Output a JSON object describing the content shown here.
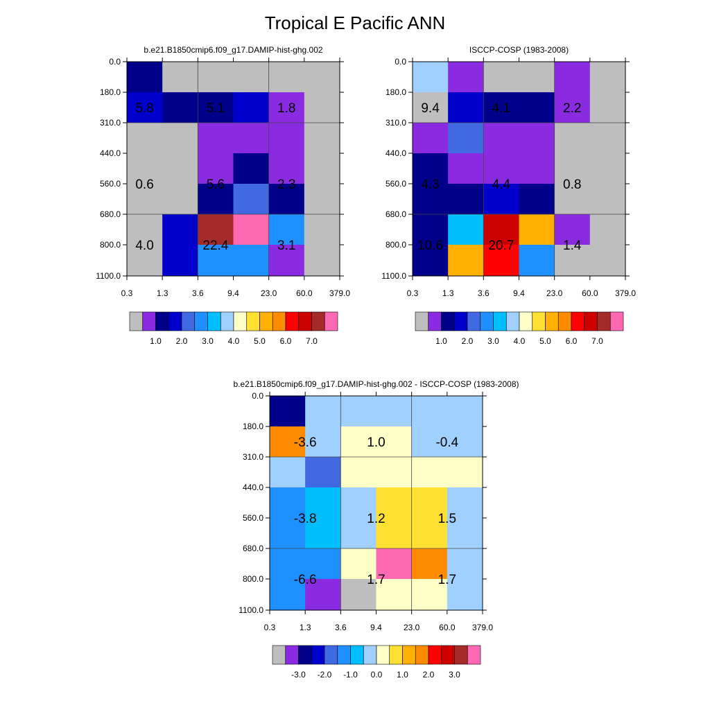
{
  "figure": {
    "title": "Tropical E Pacific ANN"
  },
  "chart_data": [
    {
      "type": "heatmap",
      "title": "b.e21.B1850cmip6.f09_g17.DAMIP-hist-ghg.002",
      "xlabel": "",
      "ylabel": "",
      "x_ticks": [
        "0.3",
        "1.3",
        "3.6",
        "9.4",
        "23.0",
        "60.0",
        "379.0"
      ],
      "y_ticks": [
        "0.0",
        "180.0",
        "310.0",
        "440.0",
        "560.0",
        "680.0",
        "800.0",
        "1100.0"
      ],
      "grid": true,
      "cell_colors": [
        [
          "#00008b",
          "#bebebe",
          "#bebebe",
          "#bebebe",
          "#bebebe",
          "#bebebe"
        ],
        [
          "#0000cd",
          "#00008b",
          "#00008b",
          "#0000cd",
          "#8a2be2",
          "#bebebe"
        ],
        [
          "#bebebe",
          "#bebebe",
          "#8a2be2",
          "#8a2be2",
          "#8a2be2",
          "#bebebe"
        ],
        [
          "#bebebe",
          "#bebebe",
          "#8a2be2",
          "#00008b",
          "#8a2be2",
          "#bebebe"
        ],
        [
          "#bebebe",
          "#bebebe",
          "#00008b",
          "#4169e1",
          "#00008b",
          "#bebebe"
        ],
        [
          "#bebebe",
          "#0000cd",
          "#a52a2a",
          "#ff69b4",
          "#1e90ff",
          "#bebebe"
        ],
        [
          "#bebebe",
          "#0000cd",
          "#1e90ff",
          "#1e90ff",
          "#8a2be2",
          "#bebebe"
        ]
      ],
      "annotations": [
        {
          "text": "5.8",
          "col": 0.5,
          "row": 1.5
        },
        {
          "text": "5.1",
          "col": 2.5,
          "row": 1.5
        },
        {
          "text": "1.8",
          "col": 4.5,
          "row": 1.5
        },
        {
          "text": "0.6",
          "col": 0.5,
          "row": 4.0
        },
        {
          "text": "5.6",
          "col": 2.5,
          "row": 4.0
        },
        {
          "text": "2.3",
          "col": 4.5,
          "row": 4.0
        },
        {
          "text": "4.0",
          "col": 0.5,
          "row": 6.0
        },
        {
          "text": "22.4",
          "col": 2.5,
          "row": 6.0
        },
        {
          "text": "3.1",
          "col": 4.5,
          "row": 6.0
        }
      ],
      "colorbar": {
        "colors": [
          "#bebebe",
          "#8a2be2",
          "#00008b",
          "#0000cd",
          "#4169e1",
          "#1e90ff",
          "#00bfff",
          "#a0d0ff",
          "#ffffc8",
          "#ffe033",
          "#ffb000",
          "#ff8c00",
          "#ff0000",
          "#cd0000",
          "#a52a2a",
          "#ff69b4"
        ],
        "labels": [
          "1.0",
          "2.0",
          "3.0",
          "4.0",
          "5.0",
          "6.0",
          "7.0"
        ],
        "label_boundaries": [
          2,
          4,
          6,
          8,
          10,
          12,
          14
        ]
      }
    },
    {
      "type": "heatmap",
      "title": "ISCCP-COSP (1983-2008)",
      "xlabel": "",
      "ylabel": "",
      "x_ticks": [
        "0.3",
        "1.3",
        "3.6",
        "9.4",
        "23.0",
        "60.0",
        "379.0"
      ],
      "y_ticks": [
        "0.0",
        "180.0",
        "310.0",
        "440.0",
        "560.0",
        "680.0",
        "800.0",
        "1100.0"
      ],
      "grid": true,
      "cell_colors": [
        [
          "#a0d0ff",
          "#8a2be2",
          "#bebebe",
          "#bebebe",
          "#8a2be2",
          "#bebebe"
        ],
        [
          "#bebebe",
          "#0000cd",
          "#00008b",
          "#00008b",
          "#8a2be2",
          "#bebebe"
        ],
        [
          "#8a2be2",
          "#4169e1",
          "#8a2be2",
          "#8a2be2",
          "#bebebe",
          "#bebebe"
        ],
        [
          "#00008b",
          "#8a2be2",
          "#8a2be2",
          "#8a2be2",
          "#bebebe",
          "#bebebe"
        ],
        [
          "#00008b",
          "#00008b",
          "#0000cd",
          "#00008b",
          "#bebebe",
          "#bebebe"
        ],
        [
          "#00008b",
          "#00bfff",
          "#cd0000",
          "#ffb000",
          "#8a2be2",
          "#bebebe"
        ],
        [
          "#00008b",
          "#ffb000",
          "#ff0000",
          "#1e90ff",
          "#bebebe",
          "#bebebe"
        ]
      ],
      "annotations": [
        {
          "text": "9.4",
          "col": 0.5,
          "row": 1.5
        },
        {
          "text": "4.1",
          "col": 2.5,
          "row": 1.5
        },
        {
          "text": "2.2",
          "col": 4.5,
          "row": 1.5
        },
        {
          "text": "4.3",
          "col": 0.5,
          "row": 4.0
        },
        {
          "text": "4.4",
          "col": 2.5,
          "row": 4.0
        },
        {
          "text": "0.8",
          "col": 4.5,
          "row": 4.0
        },
        {
          "text": "10.6",
          "col": 0.5,
          "row": 6.0
        },
        {
          "text": "20.7",
          "col": 2.5,
          "row": 6.0
        },
        {
          "text": "1.4",
          "col": 4.5,
          "row": 6.0
        }
      ],
      "colorbar": {
        "colors": [
          "#bebebe",
          "#8a2be2",
          "#00008b",
          "#0000cd",
          "#4169e1",
          "#1e90ff",
          "#00bfff",
          "#a0d0ff",
          "#ffffc8",
          "#ffe033",
          "#ffb000",
          "#ff8c00",
          "#ff0000",
          "#cd0000",
          "#a52a2a",
          "#ff69b4"
        ],
        "labels": [
          "1.0",
          "2.0",
          "3.0",
          "4.0",
          "5.0",
          "6.0",
          "7.0"
        ],
        "label_boundaries": [
          2,
          4,
          6,
          8,
          10,
          12,
          14
        ]
      }
    },
    {
      "type": "heatmap",
      "title": "b.e21.B1850cmip6.f09_g17.DAMIP-hist-ghg.002 - ISCCP-COSP (1983-2008)",
      "xlabel": "",
      "ylabel": "",
      "x_ticks": [
        "0.3",
        "1.3",
        "3.6",
        "9.4",
        "23.0",
        "60.0",
        "379.0"
      ],
      "y_ticks": [
        "0.0",
        "180.0",
        "310.0",
        "440.0",
        "560.0",
        "680.0",
        "800.0",
        "1100.0"
      ],
      "grid": true,
      "cell_colors": [
        [
          "#00008b",
          "#a0d0ff",
          "#a0d0ff",
          "#a0d0ff",
          "#a0d0ff",
          "#a0d0ff"
        ],
        [
          "#ff8c00",
          "#a0d0ff",
          "#ffffc8",
          "#ffffc8",
          "#a0d0ff",
          "#a0d0ff"
        ],
        [
          "#a0d0ff",
          "#4169e1",
          "#ffffc8",
          "#ffffc8",
          "#ffffc8",
          "#ffffc8"
        ],
        [
          "#1e90ff",
          "#00bfff",
          "#a0d0ff",
          "#ffe033",
          "#ffe033",
          "#a0d0ff"
        ],
        [
          "#1e90ff",
          "#00bfff",
          "#a0d0ff",
          "#ffe033",
          "#ffe033",
          "#a0d0ff"
        ],
        [
          "#1e90ff",
          "#1e90ff",
          "#ffffc8",
          "#ff69b4",
          "#ff8c00",
          "#a0d0ff"
        ],
        [
          "#1e90ff",
          "#8a2be2",
          "#bebebe",
          "#ffffc8",
          "#ffffc8",
          "#a0d0ff"
        ]
      ],
      "annotations": [
        {
          "text": "-3.6",
          "col": 1.0,
          "row": 1.5
        },
        {
          "text": "1.0",
          "col": 3.0,
          "row": 1.5
        },
        {
          "text": "-0.4",
          "col": 5.0,
          "row": 1.5
        },
        {
          "text": "-3.8",
          "col": 1.0,
          "row": 4.0
        },
        {
          "text": "1.2",
          "col": 3.0,
          "row": 4.0
        },
        {
          "text": "1.5",
          "col": 5.0,
          "row": 4.0
        },
        {
          "text": "-6.6",
          "col": 1.0,
          "row": 6.0
        },
        {
          "text": "1.7",
          "col": 3.0,
          "row": 6.0
        },
        {
          "text": "1.7",
          "col": 5.0,
          "row": 6.0
        }
      ],
      "colorbar": {
        "colors": [
          "#bebebe",
          "#8a2be2",
          "#00008b",
          "#0000cd",
          "#4169e1",
          "#1e90ff",
          "#00bfff",
          "#a0d0ff",
          "#ffffc8",
          "#ffe033",
          "#ffb000",
          "#ff8c00",
          "#ff0000",
          "#cd0000",
          "#a52a2a",
          "#ff69b4"
        ],
        "labels": [
          "-3.0",
          "-2.0",
          "-1.0",
          "0.0",
          "1.0",
          "2.0",
          "3.0"
        ],
        "label_boundaries": [
          2,
          4,
          6,
          8,
          10,
          12,
          14
        ]
      }
    }
  ]
}
